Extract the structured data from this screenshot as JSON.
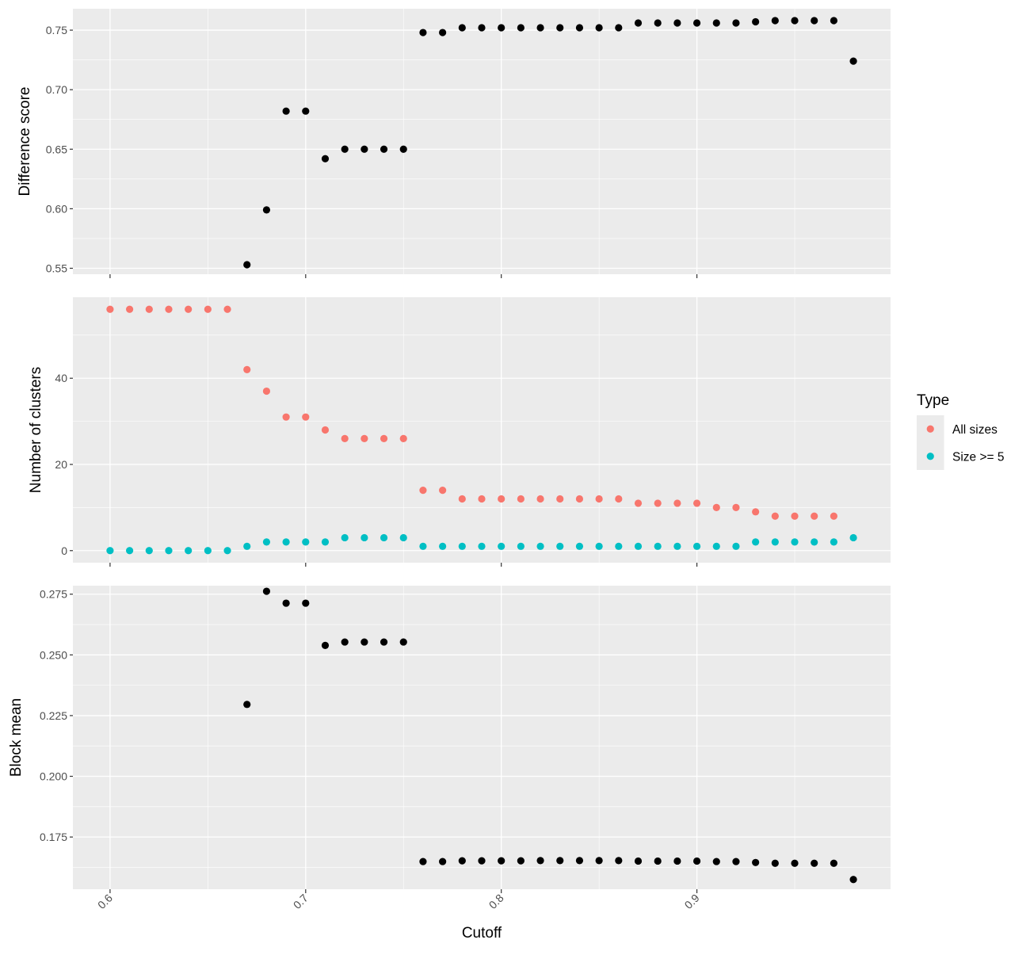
{
  "chart_data": {
    "type": "scatter",
    "xlabel": "Cutoff",
    "xlim": [
      0.581,
      0.999
    ],
    "xticks": [
      0.6,
      0.7,
      0.8,
      0.9
    ],
    "xtick_labels": [
      "0.6",
      "0.7",
      "0.8",
      "0.9"
    ],
    "grid": true,
    "legend": {
      "title": "Type",
      "position": "right",
      "entries": [
        {
          "label": "All sizes",
          "color": "#F8766D"
        },
        {
          "label": "Size >= 5",
          "color": "#00BFC4"
        }
      ]
    },
    "panels": [
      {
        "ylabel": "Difference score",
        "ylim": [
          0.545,
          0.768
        ],
        "yticks": [
          0.55,
          0.6,
          0.65,
          0.7,
          0.75
        ],
        "ytick_labels": [
          "0.55",
          "0.60",
          "0.65",
          "0.70",
          "0.75"
        ],
        "series": [
          {
            "color": "#000000",
            "x": [
              0.67,
              0.68,
              0.69,
              0.7,
              0.71,
              0.72,
              0.73,
              0.74,
              0.75,
              0.76,
              0.77,
              0.78,
              0.79,
              0.8,
              0.81,
              0.82,
              0.83,
              0.84,
              0.85,
              0.86,
              0.87,
              0.88,
              0.89,
              0.9,
              0.91,
              0.92,
              0.93,
              0.94,
              0.95,
              0.96,
              0.97,
              0.98
            ],
            "y": [
              0.553,
              0.599,
              0.682,
              0.682,
              0.642,
              0.65,
              0.65,
              0.65,
              0.65,
              0.748,
              0.748,
              0.752,
              0.752,
              0.752,
              0.752,
              0.752,
              0.752,
              0.752,
              0.752,
              0.752,
              0.756,
              0.756,
              0.756,
              0.756,
              0.756,
              0.756,
              0.757,
              0.758,
              0.758,
              0.758,
              0.758,
              0.724
            ]
          }
        ]
      },
      {
        "ylabel": "Number of clusters",
        "ylim": [
          -2.8,
          58.8
        ],
        "yticks": [
          0,
          20,
          40
        ],
        "ytick_labels": [
          "0",
          "20",
          "40"
        ],
        "series": [
          {
            "name": "All sizes",
            "color": "#F8766D",
            "x": [
              0.6,
              0.61,
              0.62,
              0.63,
              0.64,
              0.65,
              0.66,
              0.67,
              0.68,
              0.69,
              0.7,
              0.71,
              0.72,
              0.73,
              0.74,
              0.75,
              0.76,
              0.77,
              0.78,
              0.79,
              0.8,
              0.81,
              0.82,
              0.83,
              0.84,
              0.85,
              0.86,
              0.87,
              0.88,
              0.89,
              0.9,
              0.91,
              0.92,
              0.93,
              0.94,
              0.95,
              0.96,
              0.97
            ],
            "y": [
              56,
              56,
              56,
              56,
              56,
              56,
              56,
              42,
              37,
              31,
              31,
              28,
              26,
              26,
              26,
              26,
              14,
              14,
              12,
              12,
              12,
              12,
              12,
              12,
              12,
              12,
              12,
              11,
              11,
              11,
              11,
              10,
              10,
              9,
              8,
              8,
              8,
              8
            ]
          },
          {
            "name": "Size >= 5",
            "color": "#00BFC4",
            "x": [
              0.6,
              0.61,
              0.62,
              0.63,
              0.64,
              0.65,
              0.66,
              0.67,
              0.68,
              0.69,
              0.7,
              0.71,
              0.72,
              0.73,
              0.74,
              0.75,
              0.76,
              0.77,
              0.78,
              0.79,
              0.8,
              0.81,
              0.82,
              0.83,
              0.84,
              0.85,
              0.86,
              0.87,
              0.88,
              0.89,
              0.9,
              0.91,
              0.92,
              0.93,
              0.94,
              0.95,
              0.96,
              0.97,
              0.98
            ],
            "y": [
              0,
              0,
              0,
              0,
              0,
              0,
              0,
              1,
              2,
              2,
              2,
              2,
              3,
              3,
              3,
              3,
              1,
              1,
              1,
              1,
              1,
              1,
              1,
              1,
              1,
              1,
              1,
              1,
              1,
              1,
              1,
              1,
              1,
              2,
              2,
              2,
              2,
              2,
              3
            ]
          }
        ]
      },
      {
        "ylabel": "Block mean",
        "ylim": [
          0.1535,
          0.2785
        ],
        "yticks": [
          0.175,
          0.2,
          0.225,
          0.25,
          0.275
        ],
        "ytick_labels": [
          "0.175",
          "0.200",
          "0.225",
          "0.250",
          "0.275"
        ],
        "series": [
          {
            "color": "#000000",
            "x": [
              0.67,
              0.68,
              0.69,
              0.7,
              0.71,
              0.72,
              0.73,
              0.74,
              0.75,
              0.76,
              0.77,
              0.78,
              0.79,
              0.8,
              0.81,
              0.82,
              0.83,
              0.84,
              0.85,
              0.86,
              0.87,
              0.88,
              0.89,
              0.9,
              0.91,
              0.92,
              0.93,
              0.94,
              0.95,
              0.96,
              0.97,
              0.98
            ],
            "y": [
              0.2296,
              0.2762,
              0.2713,
              0.2713,
              0.2539,
              0.2553,
              0.2553,
              0.2553,
              0.2553,
              0.1649,
              0.1649,
              0.1652,
              0.1652,
              0.1652,
              0.1652,
              0.1653,
              0.1653,
              0.1653,
              0.1653,
              0.1653,
              0.1651,
              0.1651,
              0.1651,
              0.1651,
              0.1649,
              0.1649,
              0.1645,
              0.1642,
              0.1642,
              0.1642,
              0.1642,
              0.1575
            ]
          }
        ]
      }
    ]
  }
}
